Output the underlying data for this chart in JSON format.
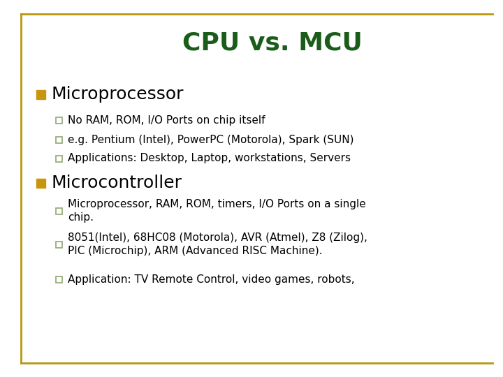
{
  "title": "CPU vs. MCU",
  "title_color": "#1a5c1a",
  "title_fontsize": 26,
  "bg_color": "#ffffff",
  "border_color": "#b8960c",
  "bullet_color": "#c8960c",
  "sub_bullet_color": "#90a870",
  "text_color": "#000000",
  "section1_header": "Microprocessor",
  "section1_header_fontsize": 18,
  "section1_bullets": [
    "No RAM, ROM, I/O Ports on chip itself",
    "e.g. Pentium (Intel), PowerPC (Motorola), Spark (SUN)",
    "Applications: Desktop, Laptop, workstations, Servers"
  ],
  "section2_header": "Microcontroller",
  "section2_header_fontsize": 18,
  "section2_bullets": [
    "Microprocessor, RAM, ROM, timers, I/O Ports on a single\nchip.",
    "8051(Intel), 68HC08 (Motorola), AVR (Atmel), Z8 (Zilog),\nPIC (Microchip), ARM (Advanced RISC Machine).",
    "Application: TV Remote Control, video games, robots,"
  ],
  "sub_bullet_fontsize": 11
}
